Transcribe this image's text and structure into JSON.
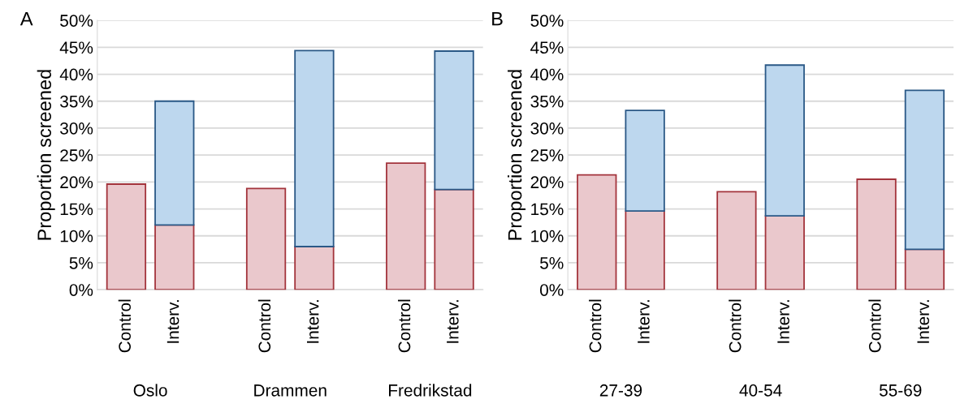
{
  "chart_data": [
    {
      "type": "bar",
      "title": "A",
      "ylabel": "Proportion screened",
      "stacked": true,
      "grid": "y",
      "legend": false,
      "categories": [
        "Control",
        "Interv.",
        "Control",
        "Interv.",
        "Control",
        "Interv."
      ],
      "annotations": [
        "Oslo",
        "Drammen",
        "Fredrikstad"
      ],
      "series": [
        {
          "color": "#eac8cc",
          "values": [
            19.6,
            12.0,
            18.8,
            8.0,
            23.5,
            18.6
          ]
        },
        {
          "color": "#bdd7ee",
          "values": [
            null,
            23.0,
            null,
            36.4,
            null,
            25.7
          ]
        }
      ],
      "ylim": [
        0,
        50
      ],
      "yticks": [
        {
          "value": 0,
          "label": "0%"
        },
        {
          "value": 5,
          "label": "5%"
        },
        {
          "value": 10,
          "label": "10%"
        },
        {
          "value": 15,
          "label": "15%"
        },
        {
          "value": 20,
          "label": "20%"
        },
        {
          "value": 25,
          "label": "25%"
        },
        {
          "value": 30,
          "label": "30%"
        },
        {
          "value": 35,
          "label": "35%"
        },
        {
          "value": 40,
          "label": "40%"
        },
        {
          "value": 45,
          "label": "45%"
        },
        {
          "value": 50,
          "label": "50%"
        }
      ]
    },
    {
      "type": "bar",
      "title": "B",
      "ylabel": "Proportion screened",
      "stacked": true,
      "grid": "y",
      "legend": false,
      "categories": [
        "Control",
        "Interv.",
        "Control",
        "Interv.",
        "Control",
        "Interv."
      ],
      "annotations": [
        "27-39",
        "40-54",
        "55-69"
      ],
      "series": [
        {
          "color": "#eac8cc",
          "values": [
            21.3,
            14.6,
            18.2,
            13.7,
            20.5,
            7.5
          ]
        },
        {
          "color": "#bdd7ee",
          "values": [
            null,
            18.7,
            null,
            28.0,
            null,
            29.5
          ]
        }
      ],
      "ylim": [
        0,
        50
      ],
      "yticks": [
        {
          "value": 0,
          "label": "0%"
        },
        {
          "value": 5,
          "label": "5%"
        },
        {
          "value": 10,
          "label": "10%"
        },
        {
          "value": 15,
          "label": "15%"
        },
        {
          "value": 20,
          "label": "20%"
        },
        {
          "value": 25,
          "label": "25%"
        },
        {
          "value": 30,
          "label": "30%"
        },
        {
          "value": 35,
          "label": "35%"
        },
        {
          "value": 40,
          "label": "40%"
        },
        {
          "value": 45,
          "label": "45%"
        },
        {
          "value": 50,
          "label": "50%"
        }
      ]
    }
  ]
}
